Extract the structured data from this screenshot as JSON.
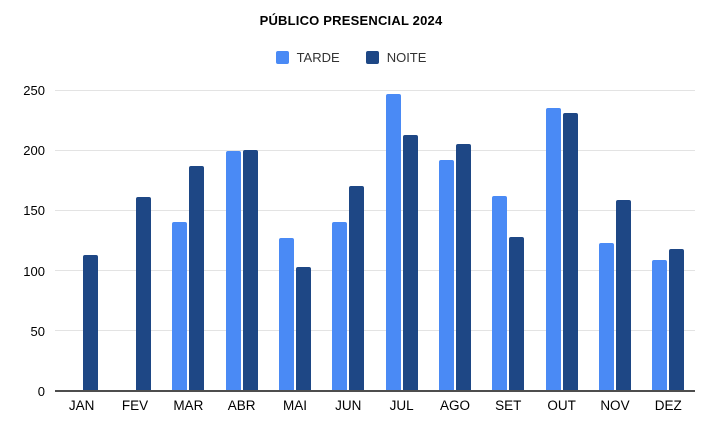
{
  "chart_data": {
    "type": "bar",
    "title": "PÚBLICO PRESENCIAL 2024",
    "xlabel": "",
    "ylabel": "",
    "categories": [
      "JAN",
      "FEV",
      "MAR",
      "ABR",
      "MAI",
      "JUN",
      "JUL",
      "AGO",
      "SET",
      "OUT",
      "NOV",
      "DEZ"
    ],
    "series": [
      {
        "name": "TARDE",
        "color": "#4a8af5",
        "values": [
          null,
          null,
          140,
          199,
          127,
          140,
          247,
          192,
          162,
          235,
          123,
          109
        ]
      },
      {
        "name": "NOITE",
        "color": "#1e4785",
        "values": [
          113,
          161,
          187,
          200,
          103,
          170,
          213,
          205,
          128,
          231,
          159,
          118
        ]
      }
    ],
    "ylim": [
      0,
      250
    ],
    "yticks": [
      0,
      50,
      100,
      150,
      200,
      250
    ],
    "grid": true,
    "legend_position": "top"
  },
  "colors": {
    "tarde": "#4a8af5",
    "noite": "#1e4785",
    "gridline": "#e3e3e3",
    "axis_line": "#4d4d4d",
    "text": "#000000"
  }
}
